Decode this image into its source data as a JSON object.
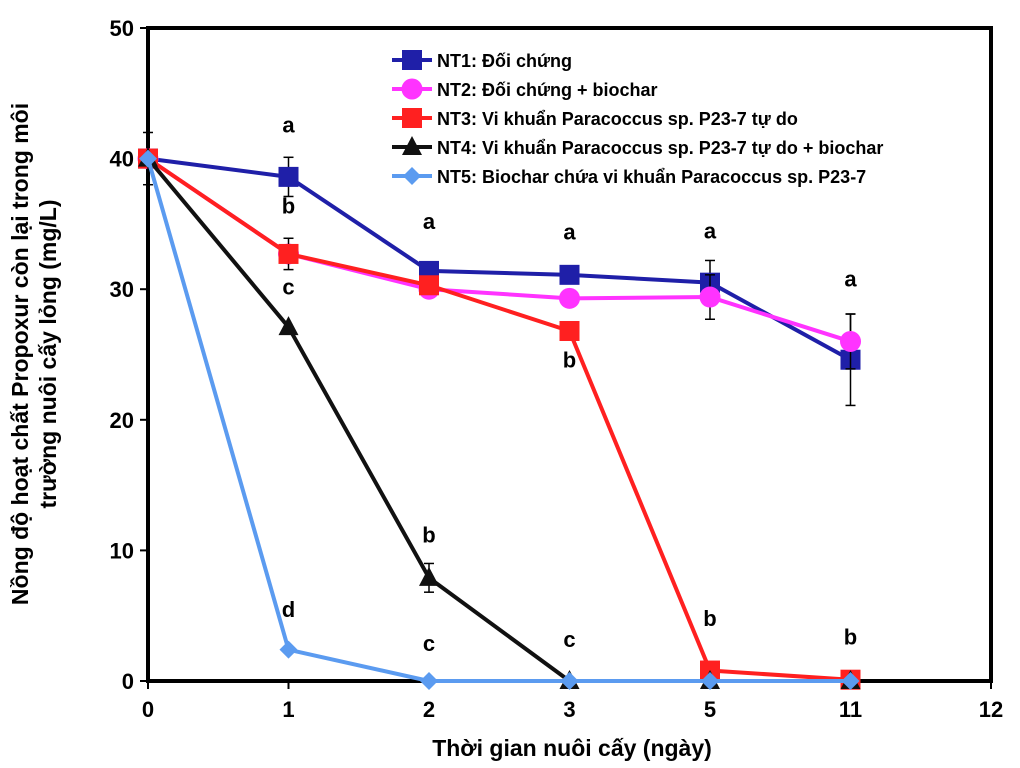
{
  "chart_data": {
    "type": "line",
    "xlabel": "Thời gian nuôi cấy (ngày)",
    "ylabel_lines": [
      "Nồng độ hoạt chất Propoxur còn lại trong môi",
      "trường nuôi cấy lỏng (mg/L)"
    ],
    "ylim": [
      0,
      50
    ],
    "y_ticks": [
      "0",
      "10",
      "20",
      "30",
      "40",
      "50"
    ],
    "x_ticks": [
      "0",
      "1",
      "2",
      "3",
      "5",
      "11",
      "12"
    ],
    "x": [
      "0",
      "1",
      "2",
      "3",
      "5",
      "11"
    ],
    "grid": false,
    "legend_position": "top-right",
    "series": [
      {
        "name": "NT1: Đối chứng",
        "color": "#1f1fa8",
        "marker": "square",
        "values": [
          40.0,
          38.6,
          31.4,
          31.1,
          30.5,
          24.6
        ],
        "errors": [
          0,
          1.5,
          0,
          0,
          1.7,
          3.5
        ]
      },
      {
        "name": "NT2: Đối chứng + biochar",
        "color": "#ff33ff",
        "marker": "circle",
        "values": [
          40.0,
          32.7,
          30.0,
          29.3,
          29.4,
          26.0
        ],
        "errors": [
          0,
          0,
          0,
          0,
          1.7,
          2.1
        ]
      },
      {
        "name": "NT3: Vi khuẩn Paracoccus sp. P23-7 tự do",
        "color": "#ff2020",
        "marker": "square",
        "values": [
          40.0,
          32.7,
          30.3,
          26.8,
          0.8,
          0.1
        ],
        "errors": [
          0,
          1.2,
          0,
          0,
          0,
          0
        ]
      },
      {
        "name": "NT4: Vi khuẩn Paracoccus sp. P23-7 tự do + biochar",
        "color": "#111111",
        "marker": "triangle",
        "values": [
          40.0,
          27.1,
          7.9,
          0.0,
          0.0,
          0.0
        ],
        "errors": [
          0,
          0,
          1.1,
          0,
          0,
          0
        ]
      },
      {
        "name": "NT5: Biochar chứa vi khuẩn Paracoccus sp. P23-7",
        "color": "#5b9bf0",
        "marker": "diamond",
        "values": [
          40.0,
          2.4,
          0.0,
          0.0,
          0.0,
          0.0
        ],
        "errors": [
          2.0,
          0,
          0,
          0,
          0,
          0
        ]
      }
    ],
    "annotations": [
      {
        "text": "a",
        "x": "1",
        "y": 42.0
      },
      {
        "text": "b",
        "x": "1",
        "y": 35.8
      },
      {
        "text": "c",
        "x": "1",
        "y": 29.6
      },
      {
        "text": "d",
        "x": "1",
        "y": 4.9
      },
      {
        "text": "a",
        "x": "2",
        "y": 34.6
      },
      {
        "text": "b",
        "x": "2",
        "y": 10.6
      },
      {
        "text": "c",
        "x": "2",
        "y": 2.3
      },
      {
        "text": "a",
        "x": "3",
        "y": 33.8
      },
      {
        "text": "b",
        "x": "3",
        "y": 24.0
      },
      {
        "text": "c",
        "x": "3",
        "y": 2.6
      },
      {
        "text": "a",
        "x": "5",
        "y": 33.9
      },
      {
        "text": "b",
        "x": "5",
        "y": 4.2
      },
      {
        "text": "a",
        "x": "11",
        "y": 30.2
      },
      {
        "text": "b",
        "x": "11",
        "y": 2.8
      }
    ]
  }
}
